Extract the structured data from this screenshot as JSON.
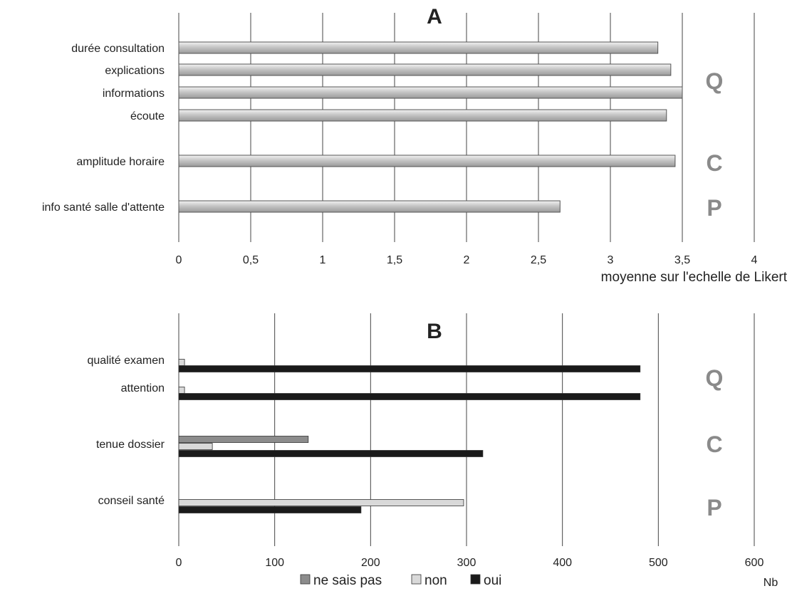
{
  "chart_data": [
    {
      "type": "bar",
      "orientation": "horizontal",
      "title": "A",
      "xlabel": "moyenne sur l'echelle de Likert",
      "xlim": [
        0,
        4
      ],
      "xticks": [
        "0",
        "0,5",
        "1",
        "1,5",
        "2",
        "2,5",
        "3",
        "3,5",
        "4"
      ],
      "grid": true,
      "categories": [
        "durée consultation",
        "explications",
        "informations",
        "écoute",
        "amplitude horaire",
        "info santé salle d'attente"
      ],
      "values": [
        3.33,
        3.42,
        3.5,
        3.39,
        3.45,
        2.65
      ],
      "groups": [
        {
          "label": "Q",
          "categories": [
            "durée consultation",
            "explications",
            "informations",
            "écoute"
          ]
        },
        {
          "label": "C",
          "categories": [
            "amplitude horaire"
          ]
        },
        {
          "label": "P",
          "categories": [
            "info santé salle d'attente"
          ]
        }
      ],
      "colors": {
        "bar": "#bdbdbd",
        "bar_edge": "#555555"
      }
    },
    {
      "type": "bar",
      "orientation": "horizontal",
      "title": "B",
      "xlabel": "Nb",
      "xlim": [
        0,
        600
      ],
      "xticks": [
        "0",
        "100",
        "200",
        "300",
        "400",
        "500",
        "600"
      ],
      "grid": true,
      "categories": [
        "qualité examen",
        "attention",
        "tenue dossier",
        "conseil santé"
      ],
      "series": [
        {
          "name": "ne sais pas",
          "color": "#8c8c8c",
          "values": [
            0,
            0,
            135,
            0
          ]
        },
        {
          "name": "non",
          "color": "#d9d9d9",
          "values": [
            6,
            6,
            35,
            297
          ]
        },
        {
          "name": "oui",
          "color": "#1a1a1a",
          "values": [
            481,
            481,
            317,
            190
          ]
        }
      ],
      "groups": [
        {
          "label": "Q",
          "categories": [
            "qualité examen",
            "attention"
          ]
        },
        {
          "label": "C",
          "categories": [
            "tenue dossier"
          ]
        },
        {
          "label": "P",
          "categories": [
            "conseil santé"
          ]
        }
      ],
      "legend": "bottom"
    }
  ]
}
